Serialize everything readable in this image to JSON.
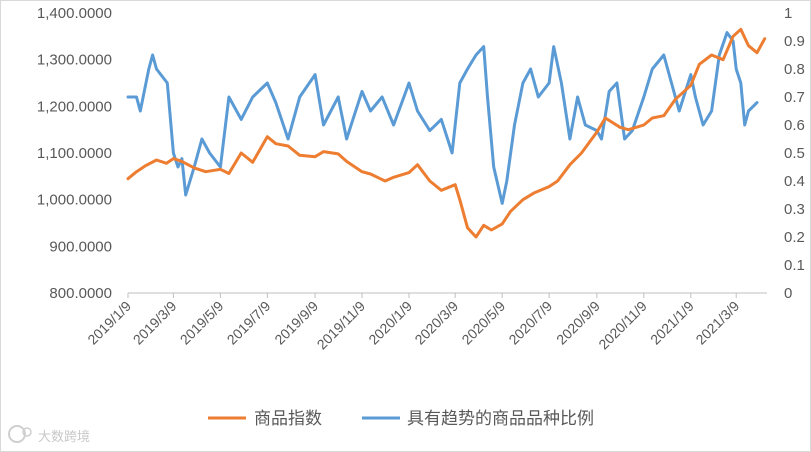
{
  "watermark": {
    "text": "大数跨境",
    "logo": "tiktok-style-logo"
  },
  "chart_data": {
    "type": "line",
    "title": "",
    "xlabel": "",
    "ylabel": "",
    "x_ticks": [
      "2019/1/9",
      "2019/3/9",
      "2019/5/9",
      "2019/7/9",
      "2019/9/9",
      "2019/11/9",
      "2020/1/9",
      "2020/3/9",
      "2020/5/9",
      "2020/7/9",
      "2020/9/9",
      "2020/11/9",
      "2021/1/9",
      "2021/3/9"
    ],
    "y_left": {
      "min": 800,
      "max": 1400,
      "ticks": [
        "800.0000",
        "900.0000",
        "1,000.0000",
        "1,100.0000",
        "1,200.0000",
        "1,300.0000",
        "1,400.0000"
      ]
    },
    "y_right": {
      "min": 0,
      "max": 1,
      "ticks": [
        "0",
        "0.1",
        "0.2",
        "0.3",
        "0.4",
        "0.5",
        "0.6",
        "0.7",
        "0.8",
        "0.9",
        "1"
      ]
    },
    "grid": false,
    "legend_position": "bottom",
    "series": [
      {
        "name": "商品指数",
        "axis": "left",
        "color": "#ed7d31",
        "points": [
          [
            "2019-01-09",
            1045
          ],
          [
            "2019-01-20",
            1060
          ],
          [
            "2019-01-31",
            1072
          ],
          [
            "2019-02-15",
            1085
          ],
          [
            "2019-02-28",
            1078
          ],
          [
            "2019-03-09",
            1088
          ],
          [
            "2019-03-20",
            1082
          ],
          [
            "2019-04-05",
            1068
          ],
          [
            "2019-04-20",
            1060
          ],
          [
            "2019-05-09",
            1065
          ],
          [
            "2019-05-20",
            1056
          ],
          [
            "2019-06-05",
            1100
          ],
          [
            "2019-06-20",
            1080
          ],
          [
            "2019-07-09",
            1135
          ],
          [
            "2019-07-20",
            1120
          ],
          [
            "2019-08-05",
            1115
          ],
          [
            "2019-08-20",
            1095
          ],
          [
            "2019-09-09",
            1092
          ],
          [
            "2019-09-20",
            1103
          ],
          [
            "2019-10-09",
            1098
          ],
          [
            "2019-10-20",
            1082
          ],
          [
            "2019-11-09",
            1060
          ],
          [
            "2019-11-20",
            1055
          ],
          [
            "2019-12-09",
            1040
          ],
          [
            "2019-12-20",
            1048
          ],
          [
            "2020-01-09",
            1058
          ],
          [
            "2020-01-20",
            1075
          ],
          [
            "2020-02-05",
            1040
          ],
          [
            "2020-02-20",
            1020
          ],
          [
            "2020-03-09",
            1032
          ],
          [
            "2020-03-15",
            1000
          ],
          [
            "2020-03-25",
            940
          ],
          [
            "2020-04-05",
            920
          ],
          [
            "2020-04-15",
            945
          ],
          [
            "2020-04-25",
            935
          ],
          [
            "2020-05-09",
            948
          ],
          [
            "2020-05-20",
            975
          ],
          [
            "2020-06-05",
            1000
          ],
          [
            "2020-06-20",
            1015
          ],
          [
            "2020-07-09",
            1028
          ],
          [
            "2020-07-20",
            1040
          ],
          [
            "2020-08-05",
            1075
          ],
          [
            "2020-08-20",
            1100
          ],
          [
            "2020-09-09",
            1145
          ],
          [
            "2020-09-20",
            1175
          ],
          [
            "2020-10-09",
            1155
          ],
          [
            "2020-10-20",
            1150
          ],
          [
            "2020-11-09",
            1160
          ],
          [
            "2020-11-20",
            1175
          ],
          [
            "2020-12-05",
            1180
          ],
          [
            "2020-12-20",
            1215
          ],
          [
            "2021-01-09",
            1245
          ],
          [
            "2021-01-20",
            1290
          ],
          [
            "2021-02-05",
            1310
          ],
          [
            "2021-02-20",
            1300
          ],
          [
            "2021-03-05",
            1350
          ],
          [
            "2021-03-15",
            1365
          ],
          [
            "2021-03-25",
            1330
          ],
          [
            "2021-04-05",
            1315
          ],
          [
            "2021-04-15",
            1345
          ]
        ]
      },
      {
        "name": "具有趋势的商品品种比例",
        "axis": "right",
        "color": "#5b9bd5",
        "points": [
          [
            "2019-01-09",
            0.7
          ],
          [
            "2019-01-20",
            0.7
          ],
          [
            "2019-01-25",
            0.65
          ],
          [
            "2019-02-05",
            0.8
          ],
          [
            "2019-02-10",
            0.85
          ],
          [
            "2019-02-15",
            0.8
          ],
          [
            "2019-03-01",
            0.75
          ],
          [
            "2019-03-09",
            0.5
          ],
          [
            "2019-03-15",
            0.45
          ],
          [
            "2019-03-20",
            0.48
          ],
          [
            "2019-03-25",
            0.35
          ],
          [
            "2019-04-05",
            0.45
          ],
          [
            "2019-04-15",
            0.55
          ],
          [
            "2019-04-25",
            0.5
          ],
          [
            "2019-05-09",
            0.45
          ],
          [
            "2019-05-20",
            0.7
          ],
          [
            "2019-06-05",
            0.62
          ],
          [
            "2019-06-20",
            0.7
          ],
          [
            "2019-07-09",
            0.75
          ],
          [
            "2019-07-20",
            0.68
          ],
          [
            "2019-08-05",
            0.55
          ],
          [
            "2019-08-20",
            0.7
          ],
          [
            "2019-09-09",
            0.78
          ],
          [
            "2019-09-20",
            0.6
          ],
          [
            "2019-10-09",
            0.7
          ],
          [
            "2019-10-20",
            0.55
          ],
          [
            "2019-11-09",
            0.72
          ],
          [
            "2019-11-20",
            0.65
          ],
          [
            "2019-12-05",
            0.7
          ],
          [
            "2019-12-20",
            0.6
          ],
          [
            "2020-01-09",
            0.75
          ],
          [
            "2020-01-20",
            0.65
          ],
          [
            "2020-02-05",
            0.58
          ],
          [
            "2020-02-20",
            0.62
          ],
          [
            "2020-03-05",
            0.5
          ],
          [
            "2020-03-15",
            0.75
          ],
          [
            "2020-03-25",
            0.8
          ],
          [
            "2020-04-05",
            0.85
          ],
          [
            "2020-04-15",
            0.88
          ],
          [
            "2020-04-20",
            0.7
          ],
          [
            "2020-04-28",
            0.45
          ],
          [
            "2020-05-09",
            0.32
          ],
          [
            "2020-05-15",
            0.4
          ],
          [
            "2020-05-25",
            0.6
          ],
          [
            "2020-06-05",
            0.75
          ],
          [
            "2020-06-15",
            0.8
          ],
          [
            "2020-06-25",
            0.7
          ],
          [
            "2020-07-09",
            0.75
          ],
          [
            "2020-07-15",
            0.88
          ],
          [
            "2020-07-25",
            0.75
          ],
          [
            "2020-08-05",
            0.55
          ],
          [
            "2020-08-15",
            0.7
          ],
          [
            "2020-08-25",
            0.6
          ],
          [
            "2020-09-09",
            0.58
          ],
          [
            "2020-09-15",
            0.55
          ],
          [
            "2020-09-25",
            0.72
          ],
          [
            "2020-10-05",
            0.75
          ],
          [
            "2020-10-15",
            0.55
          ],
          [
            "2020-10-25",
            0.58
          ],
          [
            "2020-11-09",
            0.7
          ],
          [
            "2020-11-20",
            0.8
          ],
          [
            "2020-12-05",
            0.85
          ],
          [
            "2020-12-15",
            0.75
          ],
          [
            "2020-12-25",
            0.65
          ],
          [
            "2021-01-09",
            0.78
          ],
          [
            "2021-01-15",
            0.7
          ],
          [
            "2021-01-25",
            0.6
          ],
          [
            "2021-02-05",
            0.65
          ],
          [
            "2021-02-15",
            0.85
          ],
          [
            "2021-02-25",
            0.93
          ],
          [
            "2021-03-05",
            0.9
          ],
          [
            "2021-03-09",
            0.8
          ],
          [
            "2021-03-15",
            0.75
          ],
          [
            "2021-03-20",
            0.6
          ],
          [
            "2021-03-25",
            0.65
          ],
          [
            "2021-04-05",
            0.68
          ]
        ]
      }
    ]
  }
}
